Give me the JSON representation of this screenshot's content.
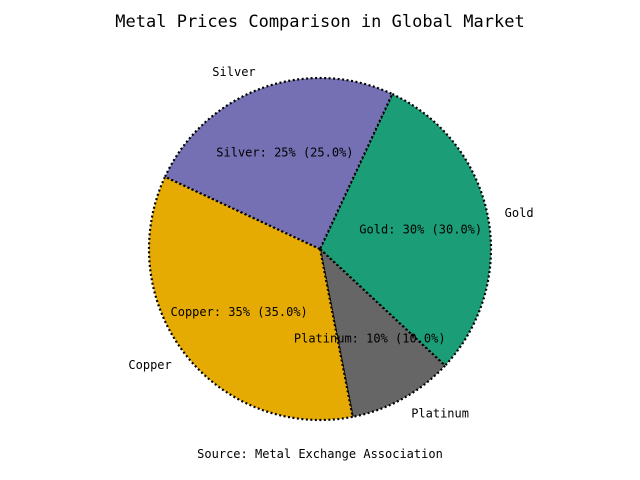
{
  "chart_data": {
    "type": "pie",
    "title": "Metal Prices Comparison in Global Market",
    "source": "Source: Metal Exchange Association",
    "slices": [
      {
        "label": "Gold",
        "value": 30,
        "value_label": "Gold: 30% (30.0%)",
        "color": "#1b9e77"
      },
      {
        "label": "Platinum",
        "value": 10,
        "value_label": "Platinum: 10% (10.0%)",
        "color": "#666666"
      },
      {
        "label": "Copper",
        "value": 35,
        "value_label": "Copper: 35% (35.0%)",
        "color": "#e6ab02"
      },
      {
        "label": "Silver",
        "value": 25,
        "value_label": "Silver: 25% (25.0%)",
        "color": "#7570b3"
      }
    ],
    "start_angle_deg": 65,
    "direction": "clockwise",
    "legend": "none"
  }
}
